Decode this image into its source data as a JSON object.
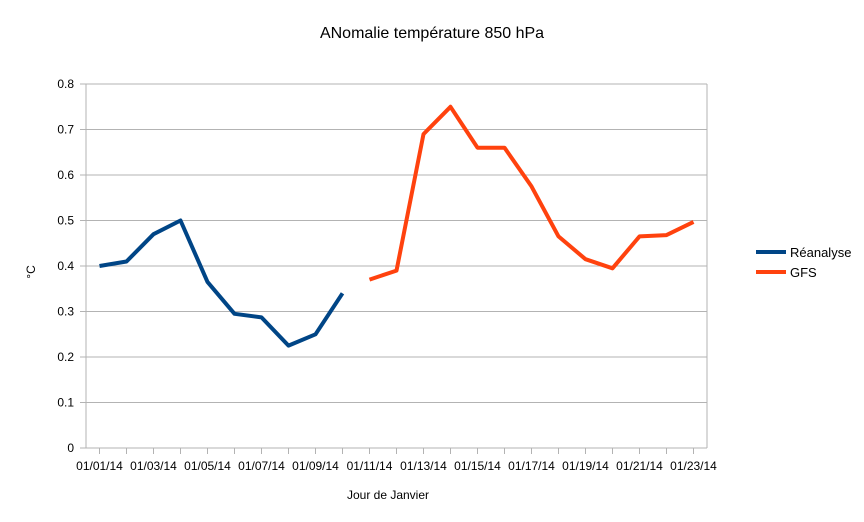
{
  "chart_data": {
    "type": "line",
    "title": "ANomalie température 850 hPa",
    "xlabel": "Jour de Janvier",
    "ylabel": "°C",
    "ylim": [
      0,
      0.8
    ],
    "yticks": [
      "0",
      "0.1",
      "0.2",
      "0.3",
      "0.4",
      "0.5",
      "0.6",
      "0.7",
      "0.8"
    ],
    "xtick_labels": [
      "01/01/14",
      "01/03/14",
      "01/05/14",
      "01/07/14",
      "01/09/14",
      "01/11/14",
      "01/13/14",
      "01/15/14",
      "01/17/14",
      "01/19/14",
      "01/21/14",
      "01/23/14"
    ],
    "categories": [
      "01/01/14",
      "01/02/14",
      "01/03/14",
      "01/04/14",
      "01/05/14",
      "01/06/14",
      "01/07/14",
      "01/08/14",
      "01/09/14",
      "01/10/14",
      "01/11/14",
      "01/12/14",
      "01/13/14",
      "01/14/14",
      "01/15/14",
      "01/16/14",
      "01/17/14",
      "01/18/14",
      "01/19/14",
      "01/20/14",
      "01/21/14",
      "01/22/14",
      "01/23/14"
    ],
    "grid": true,
    "legend_position": "right",
    "series": [
      {
        "name": "Réanalyse",
        "color": "#004586",
        "values": [
          0.4,
          0.41,
          0.47,
          0.5,
          0.365,
          0.295,
          0.287,
          0.225,
          0.25,
          0.34,
          null,
          null,
          null,
          null,
          null,
          null,
          null,
          null,
          null,
          null,
          null,
          null,
          null
        ]
      },
      {
        "name": "GFS",
        "color": "#ff420e",
        "values": [
          null,
          null,
          null,
          null,
          null,
          null,
          null,
          null,
          null,
          null,
          0.37,
          0.39,
          0.69,
          0.75,
          0.66,
          0.66,
          0.575,
          0.465,
          0.415,
          0.395,
          0.465,
          0.468,
          0.497
        ]
      }
    ]
  }
}
